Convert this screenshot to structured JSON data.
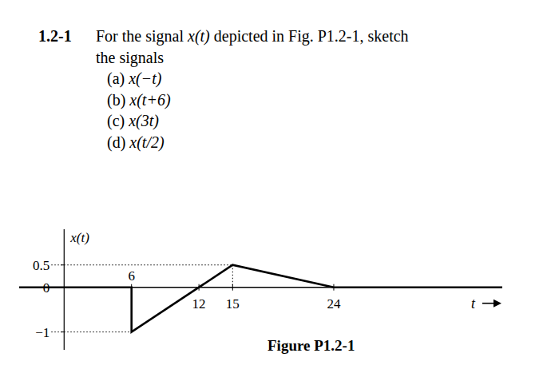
{
  "problem": {
    "number": "1.2-1",
    "lines": [
      "For the signal x(t) depicted in Fig. P1.2-1, sketch",
      "the signals"
    ],
    "parts": [
      "(a) x(−t)",
      "(b) x(t+6)",
      "(c) x(3t)",
      "(d) x(t/2)"
    ]
  },
  "chart_data": {
    "type": "line",
    "caption": "Figure P1.2-1",
    "x_label": "t",
    "y_label": "x(t)",
    "series": [
      {
        "name": "x(t)",
        "color": "#000000",
        "line_style": "solid",
        "x": [
          -4,
          6,
          6,
          12,
          15,
          24,
          39
        ],
        "values": [
          0,
          0,
          -1,
          0,
          0.5,
          0,
          0
        ]
      }
    ],
    "xlim": [
      -4,
      39
    ],
    "ylim": [
      -1.4,
      1.3
    ],
    "xticks": [
      6,
      12,
      15,
      24
    ],
    "yticks": [
      -1,
      0,
      0.5
    ],
    "grid": false
  }
}
